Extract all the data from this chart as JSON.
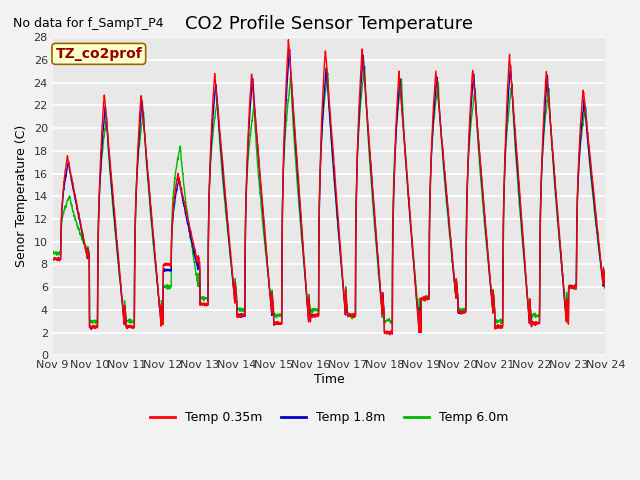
{
  "title": "CO2 Profile Sensor Temperature",
  "subtitle": "No data for f_SampT_P4",
  "ylabel": "Senor Temperature (C)",
  "xlabel": "Time",
  "ylim": [
    0,
    28
  ],
  "yticks": [
    0,
    2,
    4,
    6,
    8,
    10,
    12,
    14,
    16,
    18,
    20,
    22,
    24,
    26,
    28
  ],
  "xtick_labels": [
    "Nov 9",
    "Nov 10",
    "Nov 11",
    "Nov 12",
    "Nov 13",
    "Nov 14",
    "Nov 15",
    "Nov 16",
    "Nov 17",
    "Nov 18",
    "Nov 19",
    "Nov 20",
    "Nov 21",
    "Nov 22",
    "Nov 23",
    "Nov 24"
  ],
  "legend_labels": [
    "Temp 0.35m",
    "Temp 1.8m",
    "Temp 6.0m"
  ],
  "legend_colors": [
    "#ff0000",
    "#0000cc",
    "#00bb00"
  ],
  "annotation_text": "TZ_co2prof",
  "annotation_bg": "#ffffcc",
  "annotation_border": "#996600",
  "fig_bg": "#f2f2f2",
  "plot_bg": "#e8e8e8",
  "grid_color": "#ffffff",
  "title_fontsize": 13,
  "label_fontsize": 9,
  "tick_fontsize": 8,
  "subtitle_fontsize": 9,
  "line_width": 1.0
}
